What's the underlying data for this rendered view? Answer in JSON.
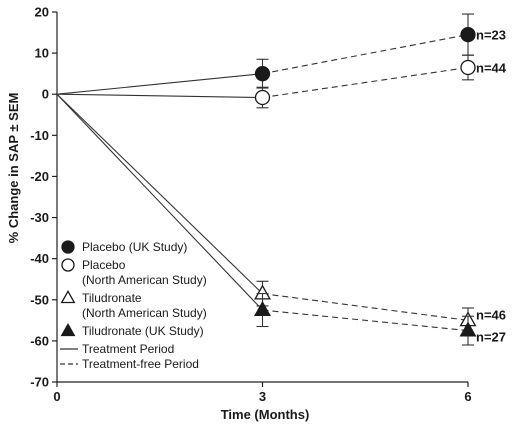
{
  "chart_data": {
    "type": "line",
    "xlabel": "Time (Months)",
    "ylabel": "% Change in SAP ± SEM",
    "x_ticks": [
      0,
      3,
      6
    ],
    "y_ticks": [
      20,
      10,
      0,
      -10,
      -20,
      -30,
      -40,
      -50,
      -60,
      -70
    ],
    "xlim": [
      0,
      6
    ],
    "ylim": [
      -70,
      20
    ],
    "grid": false,
    "legend_position": "lower-left",
    "series": [
      {
        "name": "Placebo (UK Study)",
        "marker": "filled-circle",
        "x": [
          0,
          3,
          6
        ],
        "y": [
          0,
          5,
          14.5
        ],
        "err": [
          0,
          3.5,
          5
        ],
        "n_label": "n=23"
      },
      {
        "name": "Placebo\n(North American Study)",
        "marker": "open-circle",
        "x": [
          0,
          3,
          6
        ],
        "y": [
          0,
          -0.8,
          6.5
        ],
        "err": [
          0,
          2.5,
          3
        ],
        "n_label": "n=44"
      },
      {
        "name": "Tiludronate\n(North American Study)",
        "marker": "open-triangle",
        "x": [
          0,
          3,
          6
        ],
        "y": [
          0,
          -48.5,
          -55
        ],
        "err": [
          0,
          3,
          3
        ],
        "n_label": "n=46"
      },
      {
        "name": "Tiludronate (UK Study)",
        "marker": "filled-triangle",
        "x": [
          0,
          3,
          6
        ],
        "y": [
          0,
          -52.5,
          -57.5
        ],
        "err": [
          0,
          4,
          3.5
        ],
        "n_label": "n=27"
      }
    ],
    "line_styles": [
      {
        "label": "Treatment Period",
        "style": "solid"
      },
      {
        "label": "Treatment-free Period",
        "style": "dashed"
      }
    ]
  }
}
